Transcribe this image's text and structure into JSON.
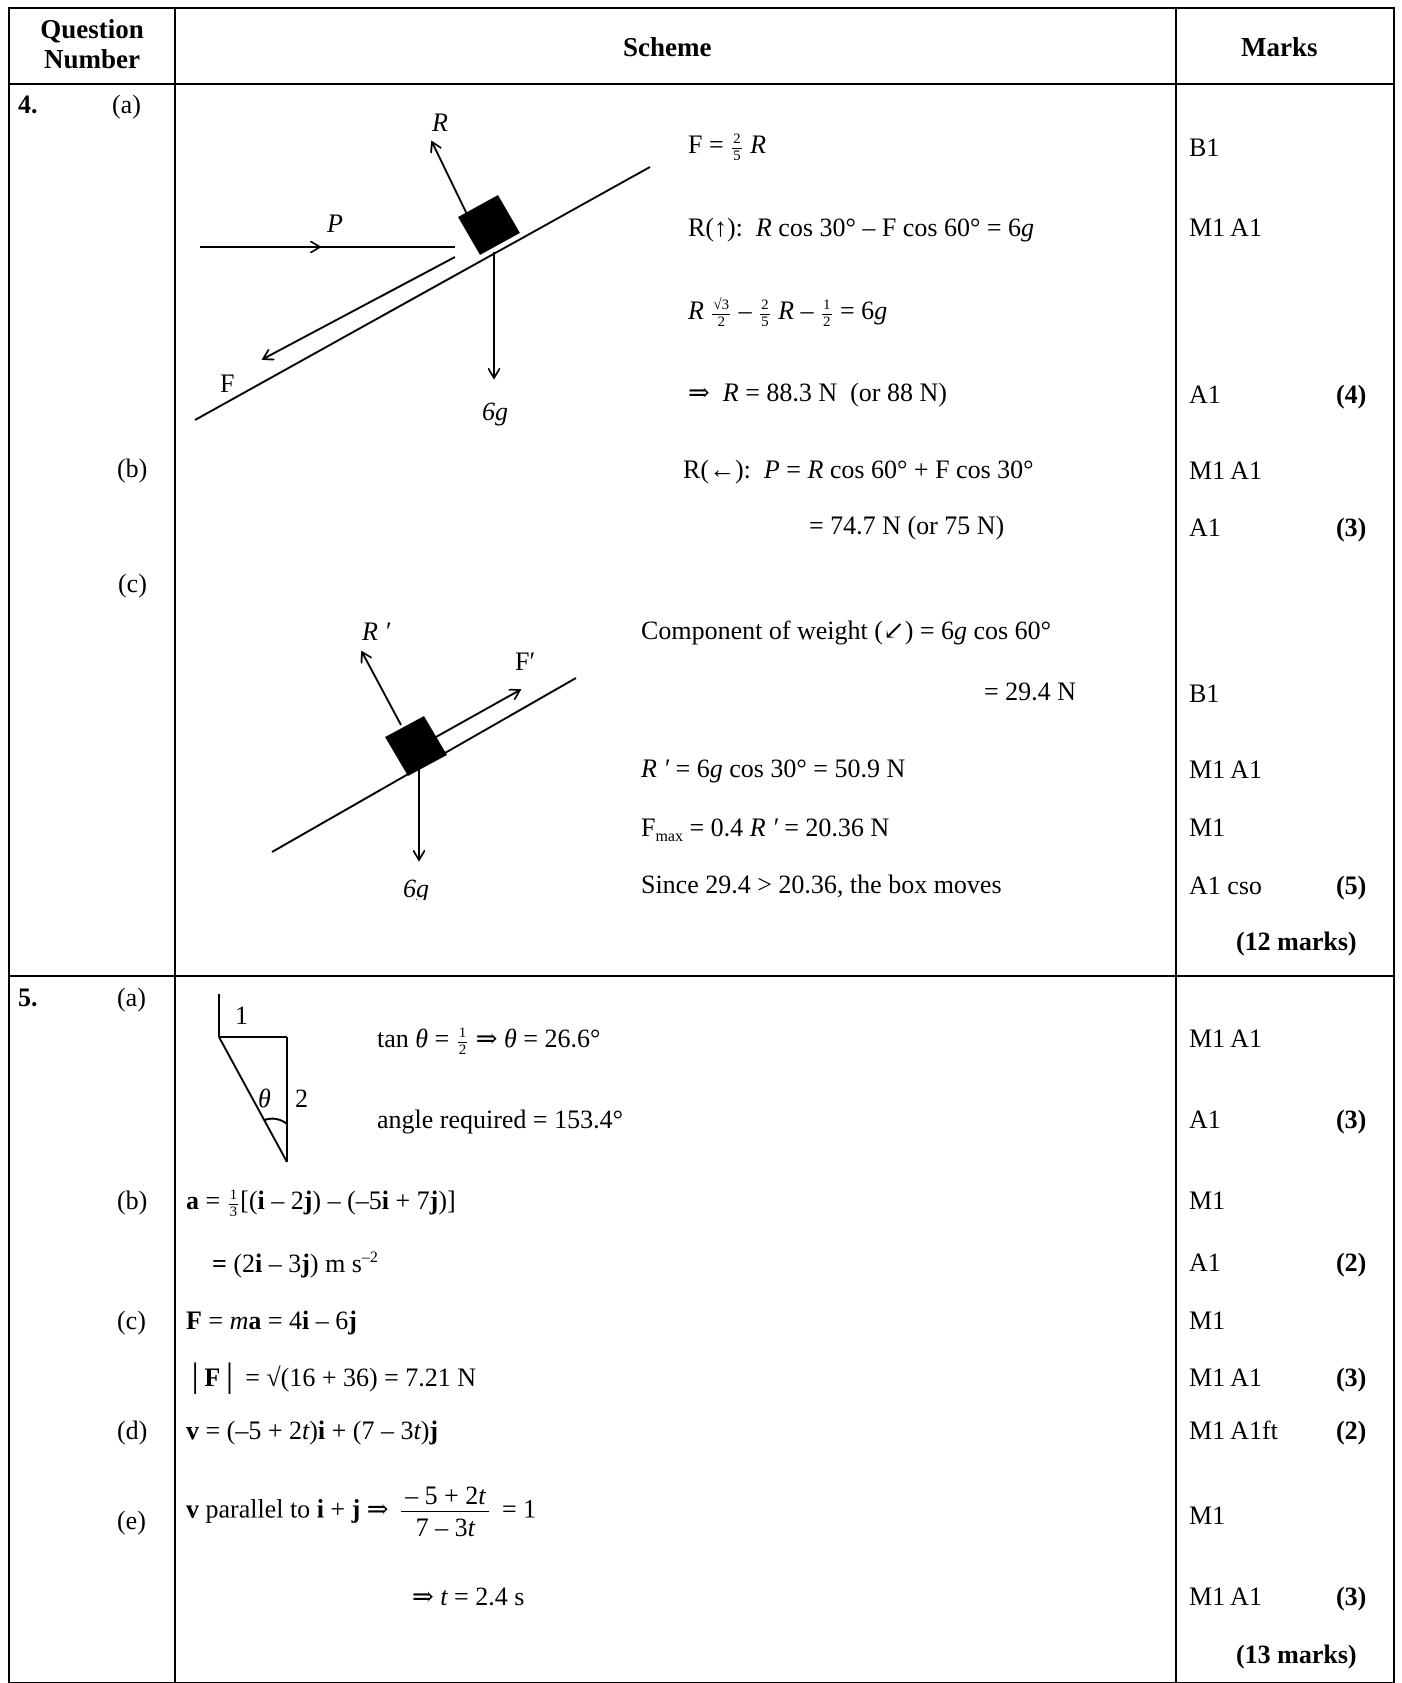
{
  "header": {
    "question_number_line1": "Question",
    "question_number_line2": "Number",
    "scheme": "Scheme",
    "marks": "Marks"
  },
  "q4": {
    "number": "4.",
    "part_a": "(a)",
    "part_b": "(b)",
    "part_c": "(c)",
    "diagram_a": {
      "R": "R",
      "P": "P",
      "F": "F",
      "weight": "6g"
    },
    "diagram_c": {
      "R": "R ′",
      "F": "F′",
      "weight": "6g"
    },
    "a_line1": "F = 2/5 R",
    "a_line2": "R(↑): R cos 30° – F cos 60° = 6g",
    "a_line3": "R √3/2 – 2/5 R – 1/2 = 6g",
    "a_line4": "⇒ R = 88.3 N (or 88 N)",
    "b_line1": "R(←): P = R cos 60° + F cos 30°",
    "b_line2": "= 74.7 N (or 75 N)",
    "c_line1": "Component of weight (↙) = 6g cos 60°",
    "c_line2": "= 29.4 N",
    "c_line3": "R ′ = 6g cos 30° = 50.9 N",
    "c_line4": "Fmax = 0.4 R ′ = 20.36 N",
    "c_line5": "Since 29.4 > 20.36, the box moves",
    "marks": {
      "m1": "B1",
      "m2": "M1 A1",
      "m3": "A1",
      "m3_total": "(4)",
      "m4": "M1 A1",
      "m5": "A1",
      "m5_total": "(3)",
      "m6": "B1",
      "m7": "M1 A1",
      "m8": "M1",
      "m9": "A1 cso",
      "m9_total": "(5)",
      "total": "(12 marks)"
    }
  },
  "q5": {
    "number": "5.",
    "part_a": "(a)",
    "part_b": "(b)",
    "part_c": "(c)",
    "part_d": "(d)",
    "part_e": "(e)",
    "triangle": {
      "side1": "1",
      "side2": "2",
      "angle": "θ"
    },
    "a_line1": "tan θ = 1/2 ⇒ θ = 26.6°",
    "a_line2": "angle required = 153.4°",
    "b_line1": "a = 1/3 [(i – 2j) – (–5i + 7j)]",
    "b_line2": "= (2i – 3j) m s–2",
    "c_line1": "F = ma = 4i – 6j",
    "c_line2": "|F| = √(16 + 36) = 7.21 N",
    "d_line1": "v = (–5 + 2t)i + (7 – 3t)j",
    "e_line1": "v parallel to i + j ⇒ (–5 + 2t)/(7 – 3t) = 1",
    "e_line2": "⇒ t = 2.4 s",
    "marks": {
      "m1": "M1 A1",
      "m2": "A1",
      "m2_total": "(3)",
      "m3": "M1",
      "m4": "A1",
      "m4_total": "(2)",
      "m5": "M1",
      "m6": "M1 A1",
      "m6_total": "(3)",
      "m7": "M1 A1ft",
      "m7_total": "(2)",
      "m8": "M1",
      "m9": "M1 A1",
      "m9_total": "(3)",
      "total": "(13 marks)"
    }
  }
}
